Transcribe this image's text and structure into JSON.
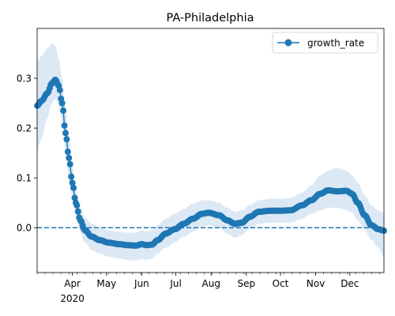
{
  "chart_data": {
    "type": "line",
    "title": "PA-Philadelphia",
    "xlabel": "",
    "ylabel": "",
    "x_axis": {
      "type": "date",
      "range": [
        "2020-03-01",
        "2020-12-31"
      ],
      "major_ticks": [
        {
          "date": "2020-04-01",
          "label": "Apr",
          "sublabel": "2020"
        },
        {
          "date": "2020-05-01",
          "label": "May",
          "sublabel": ""
        },
        {
          "date": "2020-06-01",
          "label": "Jun",
          "sublabel": ""
        },
        {
          "date": "2020-07-01",
          "label": "Jul",
          "sublabel": ""
        },
        {
          "date": "2020-08-01",
          "label": "Aug",
          "sublabel": ""
        },
        {
          "date": "2020-09-01",
          "label": "Sep",
          "sublabel": ""
        },
        {
          "date": "2020-10-01",
          "label": "Oct",
          "sublabel": ""
        },
        {
          "date": "2020-11-01",
          "label": "Nov",
          "sublabel": ""
        },
        {
          "date": "2020-12-01",
          "label": "Dec",
          "sublabel": ""
        }
      ]
    },
    "y_axis": {
      "range": [
        -0.09,
        0.4
      ],
      "ticks": [
        0.0,
        0.1,
        0.2,
        0.3
      ],
      "tick_labels": [
        "0.0",
        "0.1",
        "0.2",
        "0.3"
      ]
    },
    "grid": false,
    "legend": {
      "placement": "top-right",
      "entries": [
        "growth_rate"
      ]
    },
    "reference_line": {
      "y": 0.0,
      "style": "dashed"
    },
    "series": [
      {
        "name": "growth_rate",
        "color": "#1f77b4",
        "band_color": "#dce9f5",
        "start_date": "2020-03-01",
        "end_date": "2020-12-31",
        "anchors": [
          [
            "2020-03-01",
            0.245,
            0.155,
            0.335
          ],
          [
            "2020-03-05",
            0.255,
            0.18,
            0.345
          ],
          [
            "2020-03-10",
            0.27,
            0.22,
            0.36
          ],
          [
            "2020-03-14",
            0.29,
            0.25,
            0.37
          ],
          [
            "2020-03-17",
            0.297,
            0.26,
            0.365
          ],
          [
            "2020-03-20",
            0.285,
            0.245,
            0.34
          ],
          [
            "2020-03-23",
            0.25,
            0.21,
            0.3
          ],
          [
            "2020-03-26",
            0.19,
            0.15,
            0.24
          ],
          [
            "2020-03-29",
            0.14,
            0.1,
            0.18
          ],
          [
            "2020-04-01",
            0.09,
            0.06,
            0.125
          ],
          [
            "2020-04-04",
            0.05,
            0.025,
            0.08
          ],
          [
            "2020-04-08",
            0.015,
            -0.01,
            0.04
          ],
          [
            "2020-04-12",
            -0.005,
            -0.03,
            0.02
          ],
          [
            "2020-04-18",
            -0.018,
            -0.045,
            0.008
          ],
          [
            "2020-04-25",
            -0.025,
            -0.052,
            0.0
          ],
          [
            "2020-05-03",
            -0.03,
            -0.058,
            -0.005
          ],
          [
            "2020-05-12",
            -0.033,
            -0.062,
            -0.008
          ],
          [
            "2020-05-20",
            -0.035,
            -0.065,
            -0.01
          ],
          [
            "2020-05-27",
            -0.036,
            -0.066,
            -0.01
          ],
          [
            "2020-06-01",
            -0.033,
            -0.063,
            -0.005
          ],
          [
            "2020-06-05",
            -0.035,
            -0.064,
            -0.008
          ],
          [
            "2020-06-10",
            -0.034,
            -0.062,
            -0.005
          ],
          [
            "2020-06-15",
            -0.025,
            -0.052,
            0.005
          ],
          [
            "2020-06-22",
            -0.012,
            -0.04,
            0.018
          ],
          [
            "2020-06-30",
            -0.003,
            -0.03,
            0.028
          ],
          [
            "2020-07-08",
            0.008,
            -0.018,
            0.038
          ],
          [
            "2020-07-16",
            0.018,
            -0.008,
            0.048
          ],
          [
            "2020-07-24",
            0.028,
            0.002,
            0.055
          ],
          [
            "2020-07-30",
            0.03,
            0.005,
            0.055
          ],
          [
            "2020-08-08",
            0.025,
            0.0,
            0.05
          ],
          [
            "2020-08-15",
            0.015,
            -0.012,
            0.04
          ],
          [
            "2020-08-22",
            0.008,
            -0.02,
            0.032
          ],
          [
            "2020-08-28",
            0.01,
            -0.015,
            0.035
          ],
          [
            "2020-09-04",
            0.022,
            -0.002,
            0.045
          ],
          [
            "2020-09-12",
            0.032,
            0.008,
            0.055
          ],
          [
            "2020-09-22",
            0.034,
            0.01,
            0.058
          ],
          [
            "2020-10-01",
            0.034,
            0.01,
            0.058
          ],
          [
            "2020-10-10",
            0.035,
            0.01,
            0.06
          ],
          [
            "2020-10-20",
            0.045,
            0.018,
            0.07
          ],
          [
            "2020-10-28",
            0.055,
            0.028,
            0.085
          ],
          [
            "2020-11-05",
            0.068,
            0.035,
            0.105
          ],
          [
            "2020-11-12",
            0.075,
            0.04,
            0.115
          ],
          [
            "2020-11-20",
            0.073,
            0.04,
            0.12
          ],
          [
            "2020-11-28",
            0.074,
            0.035,
            0.115
          ],
          [
            "2020-12-03",
            0.068,
            0.03,
            0.105
          ],
          [
            "2020-12-08",
            0.05,
            0.015,
            0.09
          ],
          [
            "2020-12-14",
            0.025,
            -0.005,
            0.065
          ],
          [
            "2020-12-20",
            0.005,
            -0.025,
            0.045
          ],
          [
            "2020-12-26",
            -0.003,
            -0.04,
            0.035
          ],
          [
            "2020-12-31",
            -0.006,
            -0.06,
            0.03
          ]
        ]
      }
    ]
  }
}
